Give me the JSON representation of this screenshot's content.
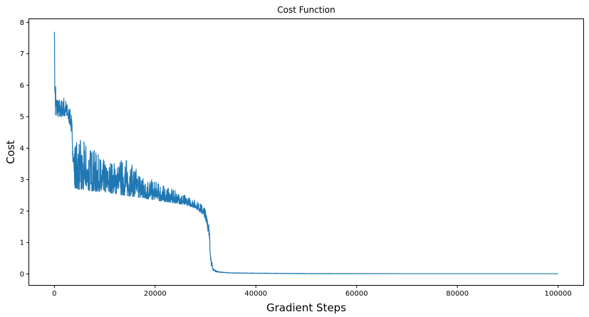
{
  "chart_data": {
    "type": "line",
    "title": "Cost Function",
    "xlabel": "Gradient Steps",
    "ylabel": "Cost",
    "xlim": [
      -5000,
      105000
    ],
    "ylim": [
      -0.35,
      8.1
    ],
    "xticks": [
      0,
      20000,
      40000,
      60000,
      80000,
      100000
    ],
    "xtick_labels": [
      "0",
      "20000",
      "40000",
      "60000",
      "80000",
      "100000"
    ],
    "yticks": [
      0,
      1,
      2,
      3,
      4,
      5,
      6,
      7,
      8
    ],
    "ytick_labels": [
      "0",
      "1",
      "2",
      "3",
      "4",
      "5",
      "6",
      "7",
      "8"
    ],
    "grid": false,
    "legend": false,
    "series": [
      {
        "color": "#1f77b4",
        "envelope": {
          "x": [
            0,
            150,
            400,
            800,
            1500,
            2200,
            2700,
            3300,
            3700,
            4000,
            5000,
            7000,
            10000,
            14000,
            18000,
            22000,
            26000,
            28000,
            29500,
            30300,
            30800,
            31100,
            31400,
            32000,
            33000,
            35000,
            40000,
            50000,
            70000,
            100000
          ],
          "lower": [
            6.6,
            5.0,
            5.0,
            5.0,
            5.0,
            5.0,
            4.95,
            4.6,
            3.5,
            2.75,
            2.68,
            2.65,
            2.6,
            2.5,
            2.4,
            2.3,
            2.2,
            2.1,
            1.9,
            1.6,
            0.9,
            0.3,
            0.12,
            0.07,
            0.05,
            0.03,
            0.02,
            0.01,
            0.01,
            0.01
          ],
          "upper": [
            7.7,
            6.7,
            5.9,
            5.6,
            5.6,
            5.7,
            5.35,
            5.2,
            4.6,
            4.2,
            4.3,
            4.1,
            3.6,
            3.7,
            3.1,
            2.8,
            2.5,
            2.35,
            2.2,
            2.05,
            1.5,
            0.6,
            0.25,
            0.12,
            0.07,
            0.04,
            0.03,
            0.02,
            0.01,
            0.01
          ]
        }
      }
    ]
  }
}
